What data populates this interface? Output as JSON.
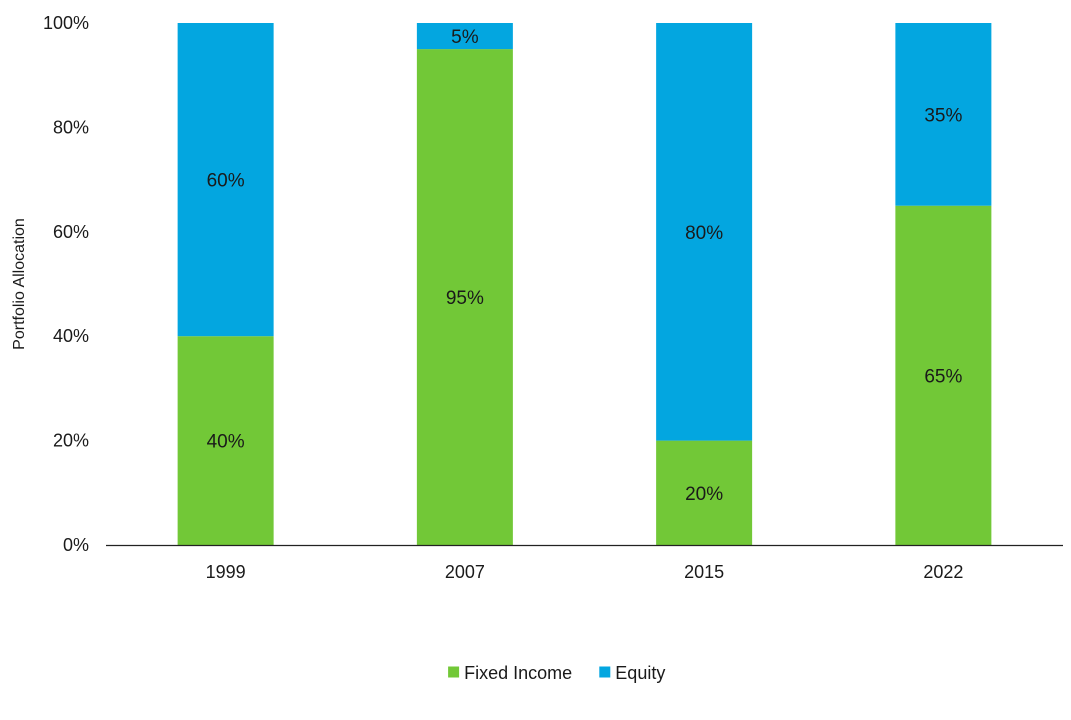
{
  "chart_data": {
    "type": "bar",
    "stacked": true,
    "title": "",
    "xlabel": "",
    "ylabel": "Portfolio Allocation",
    "categories": [
      "1999",
      "2007",
      "2015",
      "2022"
    ],
    "series": [
      {
        "name": "Fixed Income",
        "color": "#72c837",
        "values": [
          40,
          95,
          20,
          65
        ],
        "labels": [
          "40%",
          "95%",
          "20%",
          "65%"
        ]
      },
      {
        "name": "Equity",
        "color": "#03a6e0",
        "values": [
          60,
          5,
          80,
          35
        ],
        "labels": [
          "60%",
          "5%",
          "80%",
          "35%"
        ]
      }
    ],
    "ylim": [
      0,
      100
    ],
    "yticks": [
      0,
      20,
      40,
      60,
      80,
      100
    ],
    "ytick_labels": [
      "0%",
      "20%",
      "40%",
      "60%",
      "80%",
      "100%"
    ],
    "grid": false,
    "legend_position": "bottom-center"
  }
}
